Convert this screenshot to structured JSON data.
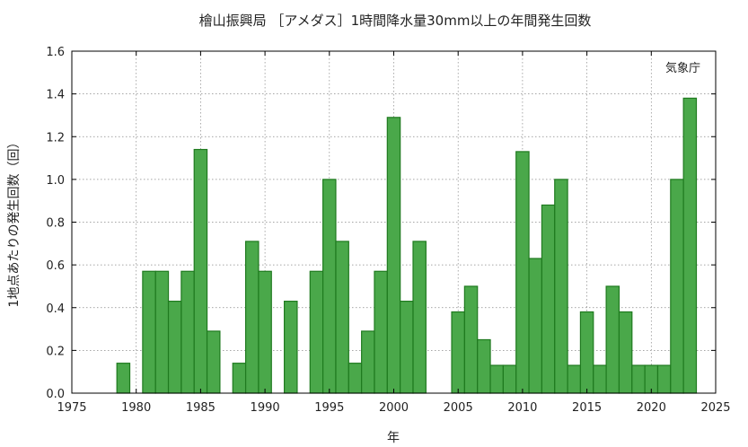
{
  "chart_data": {
    "type": "bar",
    "title": "檜山振興局 ［アメダス］1時間降水量30mm以上の年間発生回数",
    "xlabel": "年",
    "ylabel": "1地点あたりの発生回数（回）",
    "credit": "気象庁",
    "xlim": [
      1975,
      2025
    ],
    "ylim": [
      0,
      1.6
    ],
    "x_ticks": [
      1975,
      1980,
      1985,
      1990,
      1995,
      2000,
      2005,
      2010,
      2015,
      2020,
      2025
    ],
    "y_ticks": [
      "0.0",
      "0.2",
      "0.4",
      "0.6",
      "0.8",
      "1.0",
      "1.2",
      "1.4",
      "1.6"
    ],
    "grid": true,
    "bar_color": "#4aa84a",
    "bar_edge_color": "#1f7a1f",
    "x": [
      1976,
      1977,
      1978,
      1979,
      1980,
      1981,
      1982,
      1983,
      1984,
      1985,
      1986,
      1987,
      1988,
      1989,
      1990,
      1991,
      1992,
      1993,
      1994,
      1995,
      1996,
      1997,
      1998,
      1999,
      2000,
      2001,
      2002,
      2003,
      2004,
      2005,
      2006,
      2007,
      2008,
      2009,
      2010,
      2011,
      2012,
      2013,
      2014,
      2015,
      2016,
      2017,
      2018,
      2019,
      2020,
      2021,
      2022,
      2023
    ],
    "values": [
      0,
      0,
      0,
      0.14,
      0,
      0.57,
      0.57,
      0.43,
      0.57,
      1.14,
      0.29,
      0,
      0.14,
      0.71,
      0.57,
      0,
      0.43,
      0,
      0.57,
      1.0,
      0.71,
      0.14,
      0.29,
      0.57,
      1.29,
      0.43,
      0.71,
      0,
      0,
      0.38,
      0.5,
      0.25,
      0.13,
      0.13,
      1.13,
      0.63,
      0.88,
      1.0,
      0.13,
      0.38,
      0.13,
      0.5,
      0.38,
      0.13,
      0.13,
      0.13,
      1.0,
      1.38
    ]
  }
}
